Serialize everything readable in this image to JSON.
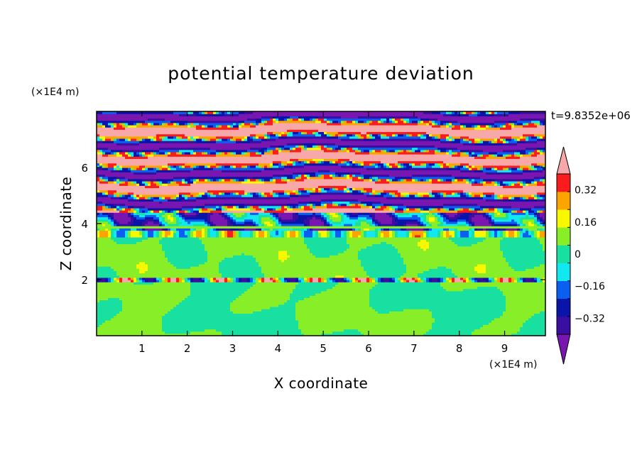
{
  "chart_data": {
    "type": "heatmap",
    "title": "potential temperature deviation",
    "xlabel": "X coordinate",
    "ylabel": "Z coordinate",
    "x_unit": "(×1E4 m)",
    "y_unit": "(×1E4 m)",
    "time_label": "t=9.8352e+06",
    "xlim": [
      0,
      9.9
    ],
    "ylim": [
      0,
      8
    ],
    "x_ticks": [
      1,
      2,
      3,
      4,
      5,
      6,
      7,
      8,
      9
    ],
    "y_ticks": [
      2,
      4,
      6
    ],
    "colorbar": {
      "levels": [
        -0.4,
        -0.32,
        -0.24,
        -0.16,
        -0.08,
        0,
        0.08,
        0.16,
        0.24,
        0.32,
        0.4
      ],
      "tick_labels": [
        "0.32",
        "0.16",
        "0",
        "−0.16",
        "−0.32"
      ],
      "tick_values": [
        0.32,
        0.16,
        0,
        -0.16,
        -0.32
      ],
      "colors": [
        "#7a16b0",
        "#3a0ea0",
        "#0a14a8",
        "#0a5ef0",
        "#12e8f0",
        "#18e0a0",
        "#88ee28",
        "#f8f800",
        "#fea400",
        "#f81c1c",
        "#f8a8a8"
      ],
      "extend": "both"
    },
    "layers": [
      {
        "z_range": [
          0,
          1.9
        ],
        "dominant": -0.05,
        "secondary": 0.05,
        "description_values": [
          -0.08,
          0.08
        ]
      },
      {
        "z_range": [
          1.9,
          2.05
        ],
        "dominant": 0.3,
        "secondary": -0.3
      },
      {
        "z_range": [
          2.05,
          3.8
        ],
        "dominant": 0.05,
        "secondary": -0.05
      },
      {
        "z_range": [
          3.8,
          4.4
        ],
        "dominant": -0.2,
        "secondary": 0.3
      },
      {
        "z_range": [
          4.4,
          8
        ],
        "dominant": 0.45,
        "secondary": -0.45
      }
    ]
  }
}
